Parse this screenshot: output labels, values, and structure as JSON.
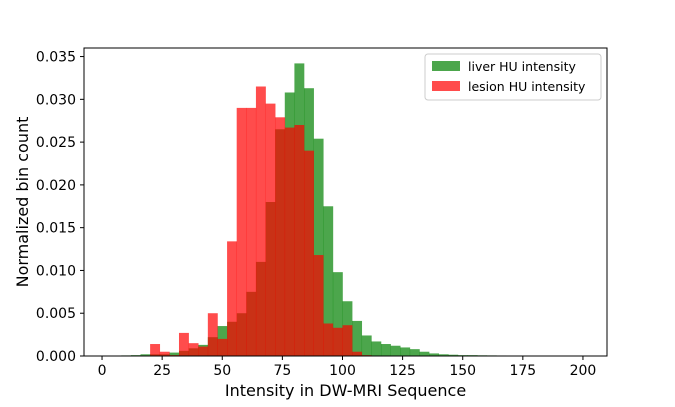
{
  "chart_data": {
    "type": "histogram",
    "xlabel": "Intensity in DW-MRI Sequence",
    "ylabel": "Normalized bin count",
    "xlim": [
      -7.5,
      210
    ],
    "ylim": [
      0,
      0.036
    ],
    "bin_width": 4,
    "x_ticks": [
      0,
      25,
      50,
      75,
      100,
      125,
      150,
      175,
      200
    ],
    "y_ticks": [
      0.0,
      0.005,
      0.01,
      0.015,
      0.02,
      0.025,
      0.03,
      0.035
    ],
    "x_tick_labels": [
      "0",
      "25",
      "50",
      "75",
      "100",
      "125",
      "150",
      "175",
      "200"
    ],
    "y_tick_labels": [
      "0.000",
      "0.005",
      "0.010",
      "0.015",
      "0.020",
      "0.025",
      "0.030",
      "0.035"
    ],
    "legend_position": "top-right",
    "series": [
      {
        "name": "liver HU intensity",
        "color": "#008000",
        "opacity": 0.7,
        "bins": [
          [
            0,
            5e-05
          ],
          [
            4,
            5e-05
          ],
          [
            8,
            7e-05
          ],
          [
            12,
            0.0001
          ],
          [
            16,
            0.0002
          ],
          [
            20,
            0.0002
          ],
          [
            24,
            0.0002
          ],
          [
            28,
            0.0004
          ],
          [
            32,
            0.0006
          ],
          [
            36,
            0.0009
          ],
          [
            40,
            0.0013
          ],
          [
            44,
            0.0022
          ],
          [
            48,
            0.0035
          ],
          [
            52,
            0.004
          ],
          [
            56,
            0.005
          ],
          [
            60,
            0.0075
          ],
          [
            64,
            0.011
          ],
          [
            68,
            0.018
          ],
          [
            72,
            0.0265
          ],
          [
            76,
            0.0308
          ],
          [
            80,
            0.0342
          ],
          [
            84,
            0.0313
          ],
          [
            88,
            0.0254
          ],
          [
            92,
            0.0175
          ],
          [
            96,
            0.0098
          ],
          [
            100,
            0.0064
          ],
          [
            104,
            0.0041
          ],
          [
            108,
            0.0024
          ],
          [
            112,
            0.0017
          ],
          [
            116,
            0.0014
          ],
          [
            120,
            0.0012
          ],
          [
            124,
            0.001
          ],
          [
            128,
            0.0008
          ],
          [
            132,
            0.0005
          ],
          [
            136,
            0.0003
          ],
          [
            140,
            0.0002
          ],
          [
            144,
            0.00015
          ],
          [
            148,
            0.0001
          ],
          [
            152,
            0.0001
          ],
          [
            156,
            8e-05
          ],
          [
            160,
            7e-05
          ],
          [
            164,
            6e-05
          ],
          [
            168,
            5e-05
          ],
          [
            172,
            5e-05
          ],
          [
            176,
            4e-05
          ],
          [
            180,
            4e-05
          ],
          [
            184,
            3e-05
          ],
          [
            188,
            3e-05
          ],
          [
            192,
            3e-05
          ],
          [
            196,
            3e-05
          ]
        ]
      },
      {
        "name": "lesion HU intensity",
        "color": "#ff0000",
        "opacity": 0.7,
        "bins": [
          [
            20,
            0.0014
          ],
          [
            24,
            0.0005
          ],
          [
            28,
            0.0001
          ],
          [
            32,
            0.0027
          ],
          [
            36,
            0.0015
          ],
          [
            40,
            0.0011
          ],
          [
            44,
            0.005
          ],
          [
            48,
            0.002
          ],
          [
            52,
            0.0134
          ],
          [
            56,
            0.029
          ],
          [
            60,
            0.029
          ],
          [
            64,
            0.0315
          ],
          [
            68,
            0.0295
          ],
          [
            72,
            0.0279
          ],
          [
            76,
            0.0267
          ],
          [
            80,
            0.027
          ],
          [
            84,
            0.024
          ],
          [
            88,
            0.0118
          ],
          [
            92,
            0.0038
          ],
          [
            96,
            0.0033
          ],
          [
            100,
            0.0036
          ],
          [
            104,
            0.0005
          ],
          [
            108,
            0.0001
          ]
        ]
      }
    ]
  }
}
